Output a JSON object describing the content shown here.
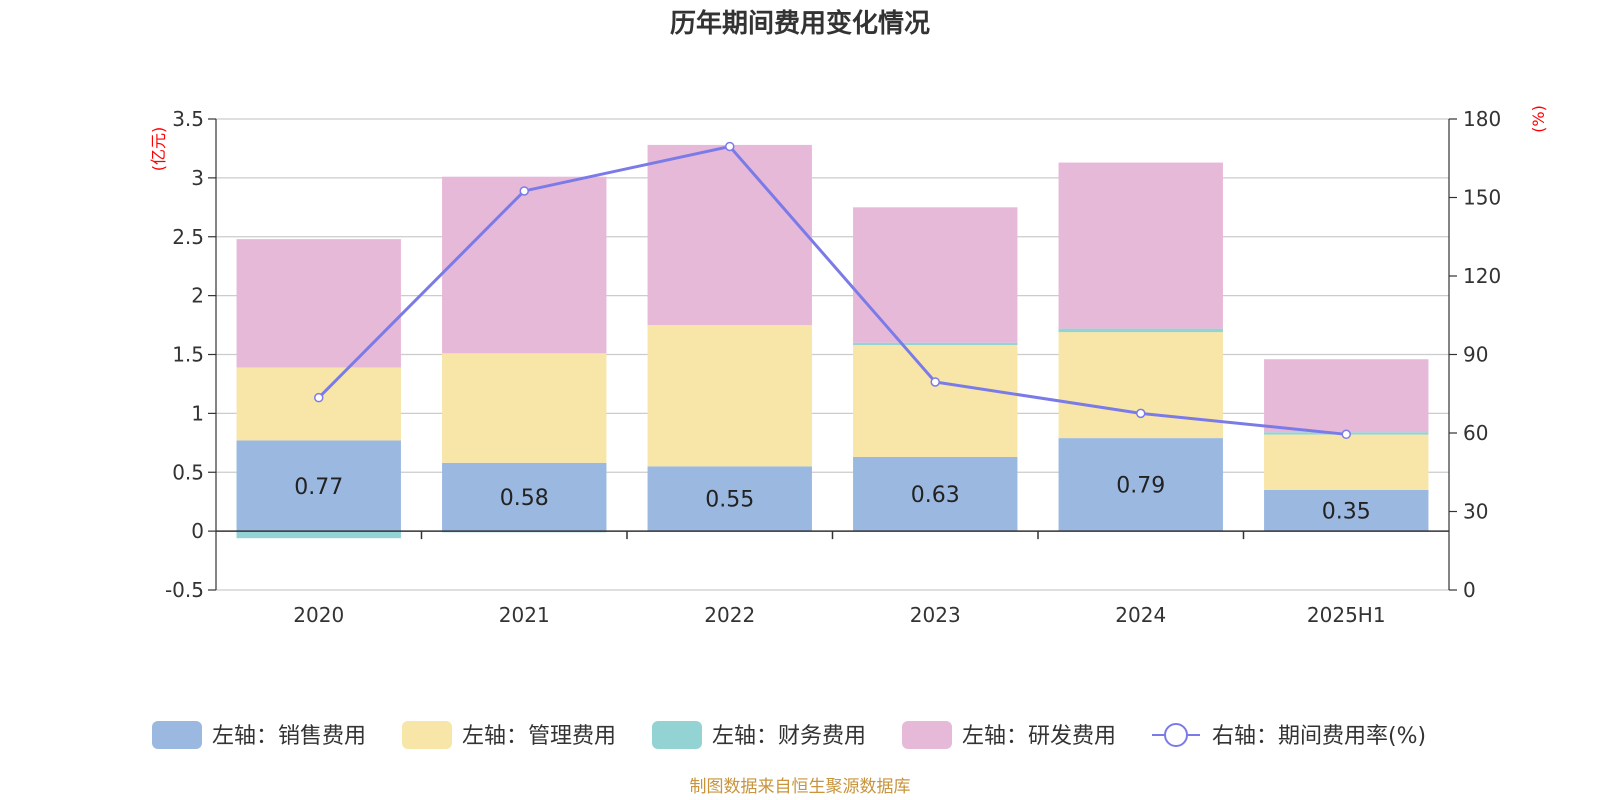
{
  "title": "历年期间费用变化情况",
  "footer": "制图数据来自恒生聚源数据库",
  "chart_data": {
    "type": "bar",
    "stacked": true,
    "categories": [
      "2020",
      "2021",
      "2022",
      "2023",
      "2024",
      "2025H1"
    ],
    "left_axis": {
      "unit_label": "(亿元)",
      "ylim": [
        -0.5,
        3.5
      ],
      "ticks": [
        -0.5,
        0,
        0.5,
        1,
        1.5,
        2,
        2.5,
        3,
        3.5
      ],
      "tick_labels": [
        "-0.5",
        "0",
        "0.5",
        "1",
        "1.5",
        "2",
        "2.5",
        "3",
        "3.5"
      ]
    },
    "right_axis": {
      "unit_label": "(%)",
      "ylim": [
        0,
        180
      ],
      "ticks": [
        0,
        30,
        60,
        90,
        120,
        150,
        180
      ],
      "tick_labels": [
        "0",
        "30",
        "60",
        "90",
        "120",
        "150",
        "180"
      ]
    },
    "grid": true,
    "legend_position": "bottom",
    "series": [
      {
        "name": "左轴：销售费用",
        "axis": "left",
        "type": "bar",
        "color": "#9bb8e0",
        "values": [
          0.77,
          0.58,
          0.55,
          0.63,
          0.79,
          0.35
        ],
        "data_labels": [
          "0.77",
          "0.58",
          "0.55",
          "0.63",
          "0.79",
          "0.35"
        ]
      },
      {
        "name": "左轴：管理费用",
        "axis": "left",
        "type": "bar",
        "color": "#f7e6a8",
        "values": [
          0.62,
          0.93,
          1.2,
          0.95,
          0.9,
          0.47
        ]
      },
      {
        "name": "左轴：财务费用",
        "axis": "left",
        "type": "bar",
        "color": "#93d3d3",
        "values": [
          -0.06,
          -0.01,
          0.0,
          0.02,
          0.03,
          0.02
        ]
      },
      {
        "name": "左轴：研发费用",
        "axis": "left",
        "type": "bar",
        "color": "#e7b9d9",
        "values": [
          1.09,
          1.5,
          1.53,
          1.15,
          1.41,
          0.62
        ]
      },
      {
        "name": "右轴：期间费用率(%)",
        "axis": "right",
        "type": "line",
        "color": "#7b7be8",
        "values": [
          73.5,
          152.5,
          169.5,
          79.5,
          67.5,
          59.5
        ]
      }
    ]
  }
}
